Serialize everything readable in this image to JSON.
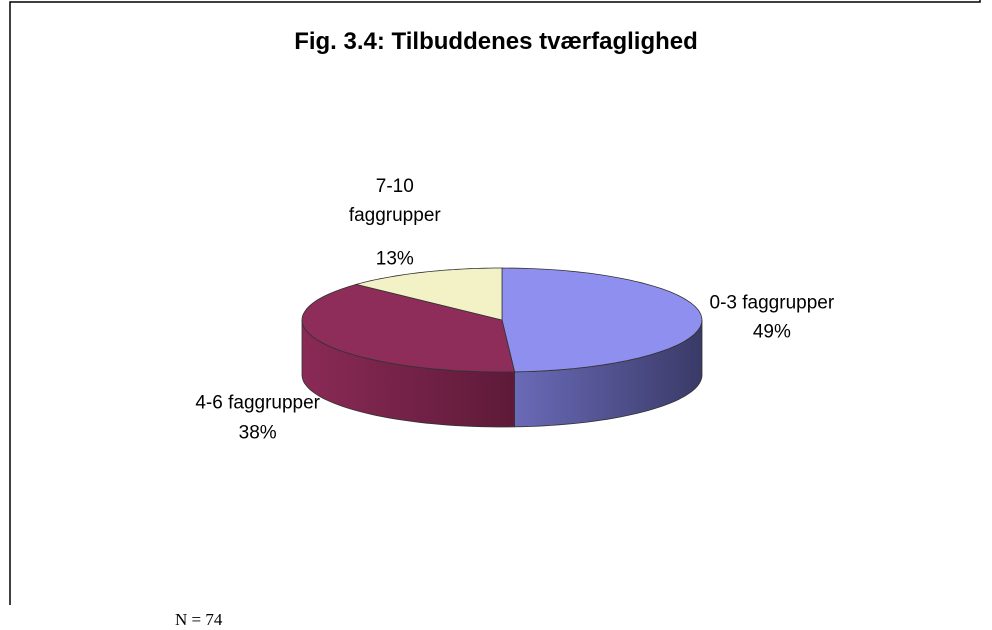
{
  "chart_data": {
    "type": "pie",
    "title": "Fig. 3.4: Tilbuddenes tværfaglighed",
    "categories": [
      "0-3 faggrupper",
      "4-6 faggrupper",
      "7-10 faggrupper"
    ],
    "values": [
      49,
      38,
      13
    ],
    "value_labels": [
      "49%",
      "38%",
      "13%"
    ],
    "colors": [
      "#8f8fef",
      "#8e2d5a",
      "#f2f2c6"
    ],
    "note": "N = 74"
  }
}
